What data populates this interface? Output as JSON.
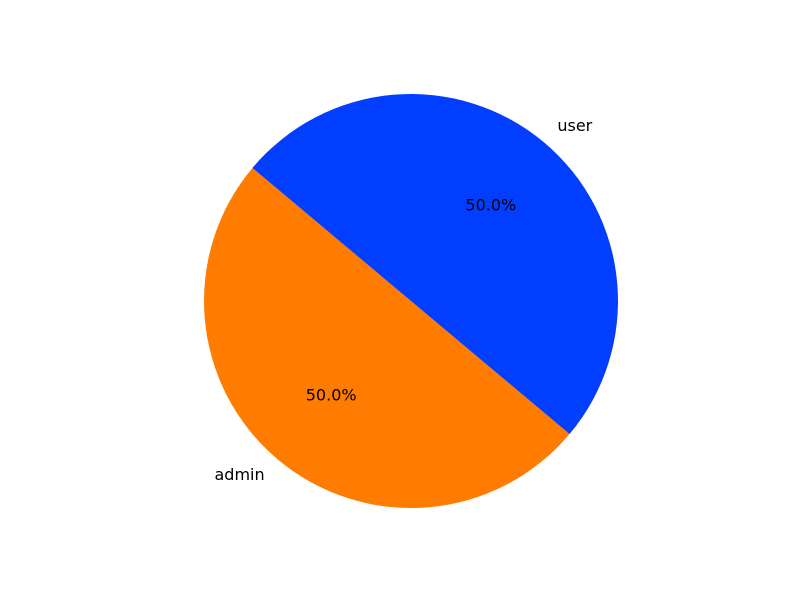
{
  "chart_data": {
    "type": "pie",
    "slices": [
      {
        "label": "admin",
        "value": 50,
        "pct_label": "50.0%",
        "color": "#ff7c00"
      },
      {
        "label": "user",
        "value": 50,
        "pct_label": "50.0%",
        "color": "#023eff"
      }
    ],
    "start_angle_deg": 140,
    "direction": "counterclockwise",
    "legend": "none"
  }
}
